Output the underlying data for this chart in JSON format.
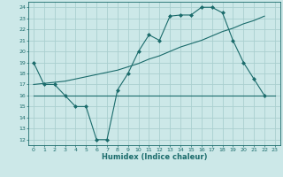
{
  "title": "",
  "xlabel": "Humidex (Indice chaleur)",
  "xlim": [
    -0.5,
    23.5
  ],
  "ylim": [
    11.5,
    24.5
  ],
  "yticks": [
    12,
    13,
    14,
    15,
    16,
    17,
    18,
    19,
    20,
    21,
    22,
    23,
    24
  ],
  "xticks": [
    0,
    1,
    2,
    3,
    4,
    5,
    6,
    7,
    8,
    9,
    10,
    11,
    12,
    13,
    14,
    15,
    16,
    17,
    18,
    19,
    20,
    21,
    22,
    23
  ],
  "bg_color": "#cce8e8",
  "line_color": "#1a6b6b",
  "grid_color": "#aacfcf",
  "line1_x": [
    0,
    1,
    2,
    3,
    4,
    5,
    6,
    7,
    8,
    9,
    10,
    11,
    12,
    13,
    14,
    15,
    16,
    17,
    18,
    19,
    20,
    21,
    22
  ],
  "line1_y": [
    19,
    17,
    17,
    16,
    15,
    15,
    12,
    12,
    16.5,
    18,
    20,
    21.5,
    21,
    23.2,
    23.3,
    23.3,
    24,
    24,
    23.5,
    21,
    19,
    17.5,
    16
  ],
  "line2_x": [
    0,
    3,
    22,
    23
  ],
  "line2_y": [
    16,
    16,
    16,
    16
  ],
  "line3_x": [
    0,
    1,
    2,
    3,
    4,
    5,
    6,
    7,
    8,
    9,
    10,
    11,
    12,
    13,
    14,
    15,
    16,
    17,
    18,
    19,
    20,
    21,
    22
  ],
  "line3_y": [
    17.0,
    17.1,
    17.2,
    17.3,
    17.5,
    17.7,
    17.9,
    18.1,
    18.3,
    18.6,
    18.9,
    19.3,
    19.6,
    20.0,
    20.4,
    20.7,
    21.0,
    21.4,
    21.8,
    22.1,
    22.5,
    22.8,
    23.2
  ]
}
